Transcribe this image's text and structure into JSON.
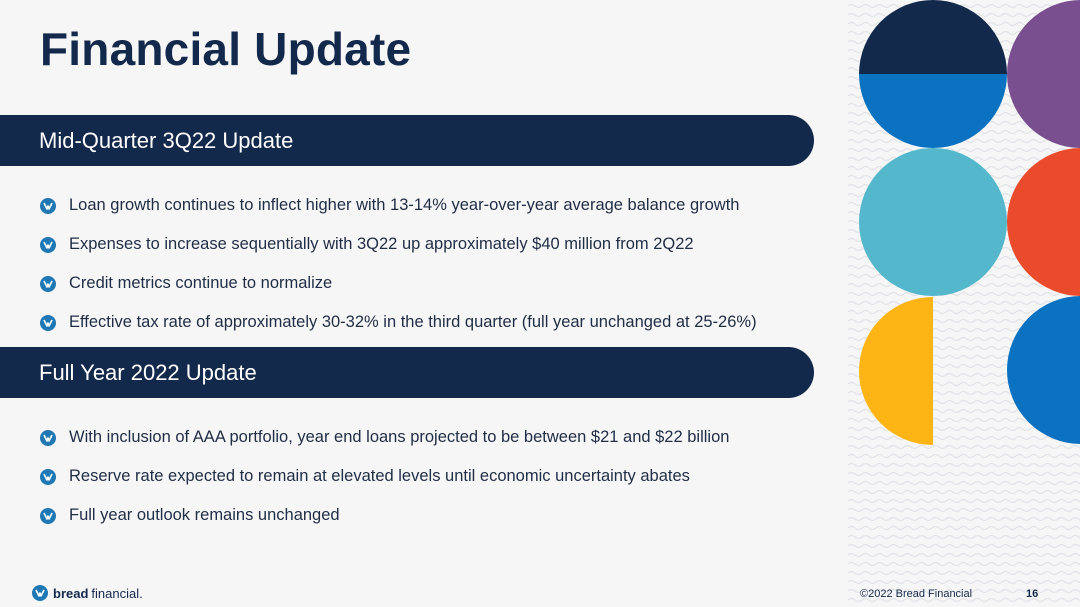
{
  "slide": {
    "title": "Financial Update"
  },
  "sections": [
    {
      "heading": "Mid-Quarter 3Q22 Update",
      "bullets": [
        "Loan growth continues to inflect higher with 13-14% year-over-year average balance growth",
        "Expenses to increase sequentially with 3Q22 up approximately $40 million from 2Q22",
        "Credit metrics continue to normalize",
        "Effective tax rate of approximately 30-32% in the third quarter (full year unchanged at 25-26%)"
      ]
    },
    {
      "heading": "Full Year 2022 Update",
      "bullets": [
        "With inclusion of AAA portfolio, year end loans projected to be between $21 and $22 billion",
        "Reserve rate expected to remain at elevated levels until economic uncertainty abates",
        "Full year outlook remains unchanged"
      ]
    }
  ],
  "footer": {
    "brand_bold": "bread",
    "brand_light": "financial.",
    "copyright": "©2022 Bread Financial",
    "page_number": "16"
  },
  "colors": {
    "navy": "#13294b",
    "blue": "#0a72c0",
    "teal": "#54b7cb",
    "purple": "#7a4f8f",
    "orange_red": "#e94b2c",
    "yellow": "#fdb515",
    "bullet_icon": "#1f78b4"
  },
  "icons": {
    "bullet": "bread-logo-bullet-icon",
    "footer_logo": "bread-financial-logo-icon"
  }
}
